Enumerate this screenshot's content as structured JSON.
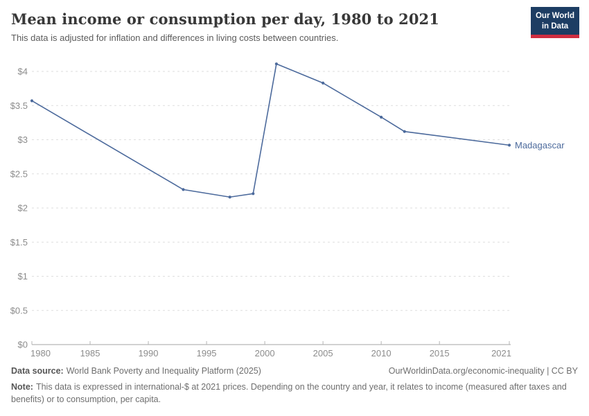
{
  "header": {
    "title": "Mean income or consumption per day, 1980 to 2021",
    "subtitle": "This data is adjusted for inflation and differences in living costs between countries.",
    "logo": {
      "line1": "Our World",
      "line2": "in Data",
      "bg_color": "#1d3d63",
      "accent_color": "#cf2e41"
    }
  },
  "chart_data": {
    "type": "line",
    "title": "Mean income or consumption per day, 1980 to 2021",
    "x": [
      1980,
      1993,
      1997,
      1999,
      2001,
      2005,
      2010,
      2012,
      2021
    ],
    "series": [
      {
        "name": "Madagascar",
        "values": [
          3.57,
          2.27,
          2.16,
          2.21,
          4.11,
          3.83,
          3.33,
          3.12,
          2.92
        ],
        "color": "#4c6a9c"
      }
    ],
    "end_label": "Madagascar",
    "xlabel": "",
    "ylabel": "",
    "xlim": [
      1980,
      2021
    ],
    "ylim": [
      0,
      4
    ],
    "x_ticks": [
      1980,
      1985,
      1990,
      1995,
      2000,
      2005,
      2010,
      2015,
      2021
    ],
    "y_tick_values": [
      0,
      0.5,
      1,
      1.5,
      2,
      2.5,
      3,
      3.5,
      4
    ],
    "y_tick_labels": [
      "$0",
      "$0.5",
      "$1",
      "$1.5",
      "$2",
      "$2.5",
      "$3",
      "$3.5",
      "$4"
    ],
    "grid": "horizontal dashed",
    "legend_position": "end-of-line",
    "colors": {
      "axis_text": "#8c8c8c",
      "gridline": "#dedede",
      "axis_line": "#a3a3a3",
      "tick": "#b5b5b5"
    }
  },
  "footer": {
    "source_label": "Data source:",
    "source_value": "World Bank Poverty and Inequality Platform (2025)",
    "link_text": "OurWorldinData.org/economic-inequality | CC BY",
    "note_label": "Note:",
    "note_value": "This data is expressed in international-$ at 2021 prices. Depending on the country and year, it relates to income (measured after taxes and benefits) or to consumption, per capita."
  }
}
